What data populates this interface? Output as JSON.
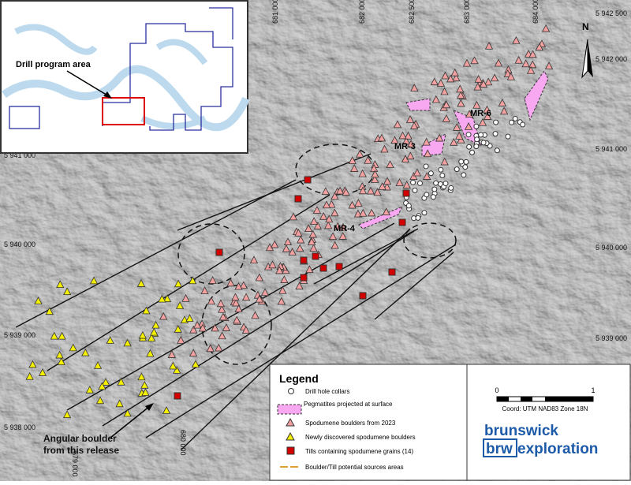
{
  "map": {
    "inset": {
      "label": "Drill program area"
    },
    "grid_labels": {
      "top": [
        "681 000",
        "682 000",
        "682 500",
        "683 000",
        "684 000"
      ],
      "right": [
        "5 942 500",
        "5 942 000",
        "5 941 000",
        "5 940 000",
        "5 939 000"
      ],
      "left": [
        "5 941 000",
        "5 940 000",
        "5 939 000",
        "5 938 000"
      ],
      "bottom": [
        "679 000",
        "680 000"
      ]
    },
    "zones": [
      "MR-6",
      "MR-3",
      "MR-4"
    ],
    "callout": [
      "Angular boulder",
      "from this release"
    ]
  },
  "legend": {
    "title": "Legend",
    "items": [
      "Drill hole collars",
      "Pegmatites projected at surface",
      "Spodumene boulders from 2023",
      "Newly discovered spodumene boulders",
      "Tills containing spodumene grains  (14)",
      "Boulder/Till potential sources areas"
    ]
  },
  "scale": {
    "start": "0",
    "end": "1",
    "coord": "Coord: UTM NAD83 Zone 18N"
  },
  "logo": {
    "word1": "brunswick",
    "word2": "brw",
    "word3": "exploration"
  },
  "north": "N"
}
